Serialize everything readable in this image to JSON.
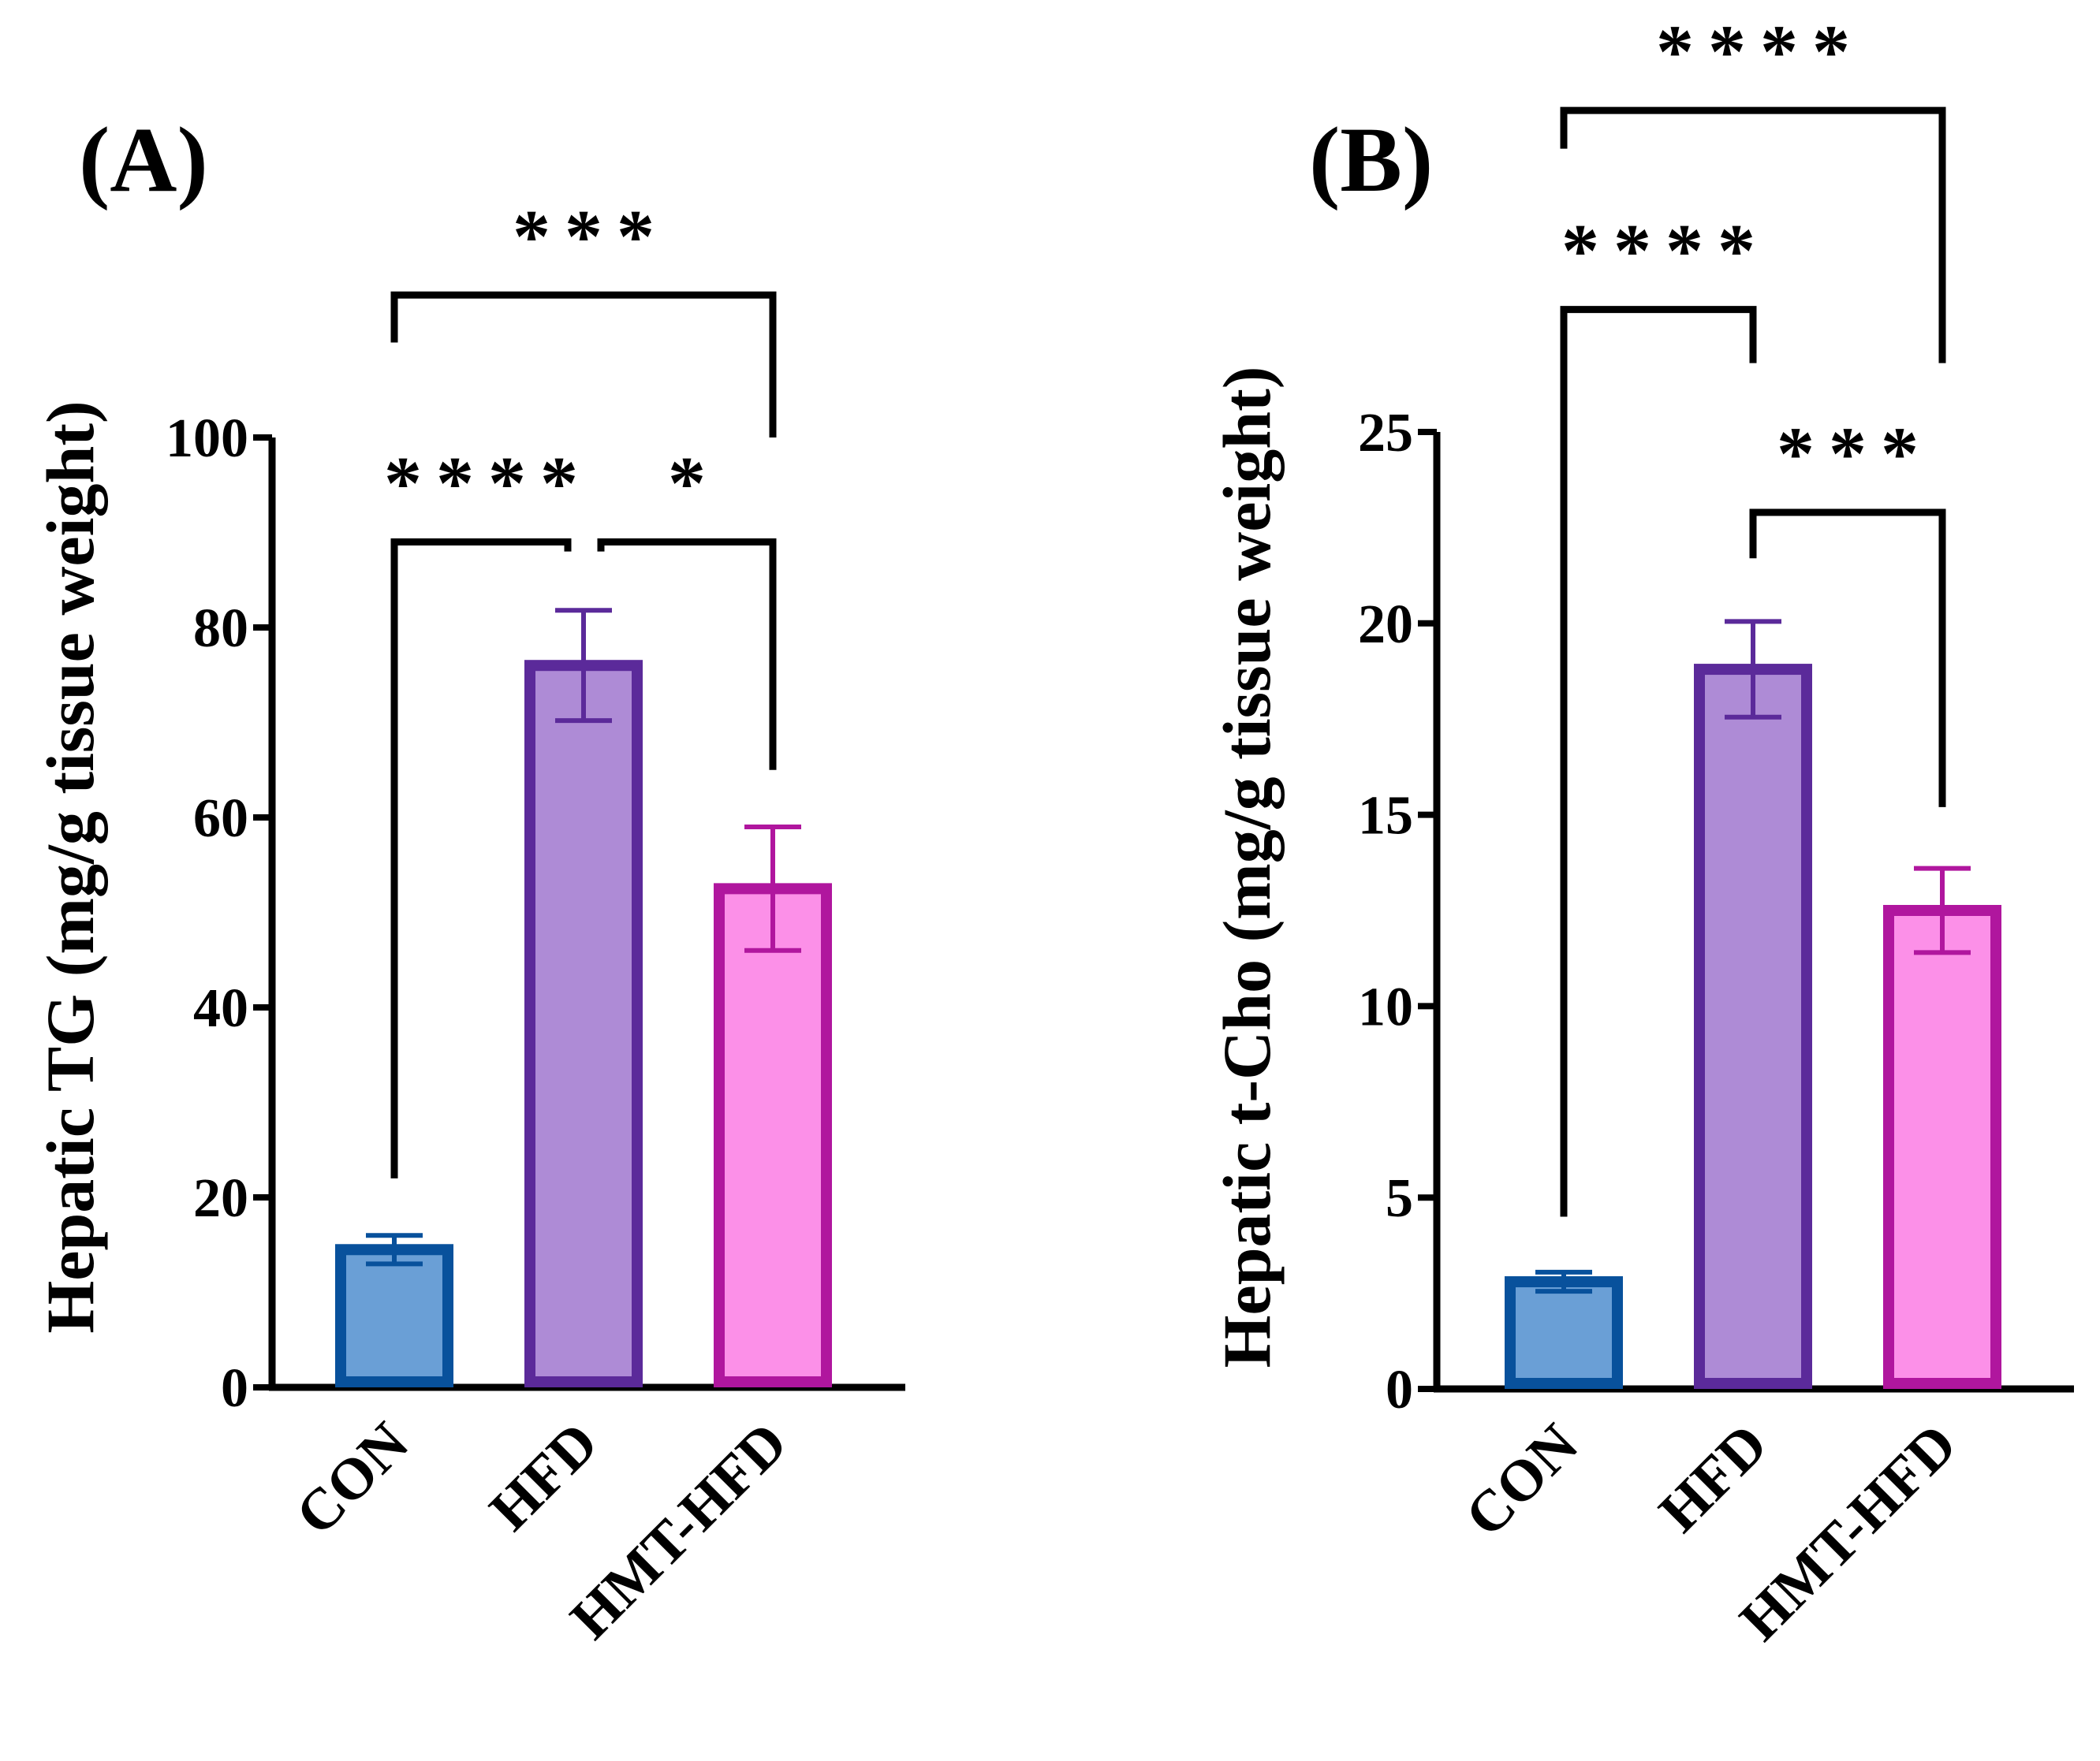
{
  "chart_data": [
    {
      "type": "bar",
      "panel_label": "(A)",
      "title": "",
      "xlabel": "",
      "ylabel": "Hepatic TG (mg/g tissue weight)",
      "ylim": [
        0,
        100
      ],
      "yticks": [
        "0",
        "20",
        "40",
        "60",
        "80",
        "100"
      ],
      "categories": [
        "CON",
        "HFD",
        "HMT-HFD"
      ],
      "values": [
        14.5,
        76,
        52.5
      ],
      "errors": [
        1.5,
        5.8,
        6.5
      ],
      "colors": {
        "fill": [
          "#6a9fd6",
          "#ae8bd6",
          "#fc90e8"
        ],
        "edge": [
          "#08519c",
          "#5b2a9a",
          "#b0169e"
        ]
      },
      "significance": [
        {
          "groups": [
            "CON",
            "HFD"
          ],
          "label": "****",
          "level": 89,
          "drop_left": 22,
          "drop_right": 88
        },
        {
          "groups": [
            "HFD",
            "HMT-HFD"
          ],
          "label": "*",
          "level": 89,
          "drop_left": 88,
          "drop_right": 65
        },
        {
          "groups": [
            "CON",
            "HMT-HFD"
          ],
          "label": "***",
          "level": 115,
          "drop_left": 110,
          "drop_right": 100
        }
      ]
    },
    {
      "type": "bar",
      "panel_label": "(B)",
      "title": "",
      "xlabel": "",
      "ylabel": "Hepatic t-Cho (mg/g tissue weight)",
      "ylim": [
        0,
        25
      ],
      "yticks": [
        "0",
        "5",
        "10",
        "15",
        "20",
        "25"
      ],
      "categories": [
        "CON",
        "HFD",
        "HMT-HFD"
      ],
      "values": [
        2.8,
        18.8,
        12.5
      ],
      "errors": [
        0.25,
        1.25,
        1.1
      ],
      "colors": {
        "fill": [
          "#6a9fd6",
          "#ae8bd6",
          "#fc90e8"
        ],
        "edge": [
          "#08519c",
          "#5b2a9a",
          "#b0169e"
        ]
      },
      "significance": [
        {
          "groups": [
            "CON",
            "HFD"
          ],
          "label": "****",
          "level": 28.2,
          "drop_left": 4.5,
          "drop_right": 26.8
        },
        {
          "groups": [
            "HFD",
            "HMT-HFD"
          ],
          "label": "***",
          "level": 22.9,
          "drop_left": 21.7,
          "drop_right": 15.2
        },
        {
          "groups": [
            "CON",
            "HMT-HFD"
          ],
          "label": "****",
          "level": 33.4,
          "drop_left": 32.4,
          "drop_right": 26.8
        }
      ]
    }
  ]
}
